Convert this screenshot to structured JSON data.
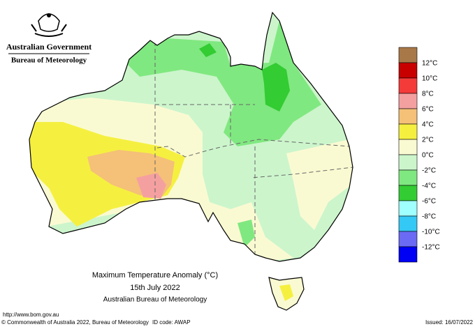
{
  "header": {
    "government": "Australian Government",
    "bureau": "Bureau of Meteorology"
  },
  "legend": {
    "labels": [
      "12°C",
      "10°C",
      "8°C",
      "6°C",
      "4°C",
      "2°C",
      "0°C",
      "-2°C",
      "-4°C",
      "-6°C",
      "-8°C",
      "-10°C",
      "-12°C"
    ],
    "colors": [
      "#a87848",
      "#c80000",
      "#f53a3a",
      "#f5a0a0",
      "#f5c078",
      "#f5f040",
      "#fafad2",
      "#ccf5cc",
      "#80e880",
      "#33cc33",
      "#a0ffff",
      "#33c8f5",
      "#6a6af5",
      "#0000f5"
    ]
  },
  "caption": {
    "title": "Maximum Temperature Anomaly (°C)",
    "date": "15th July 2022",
    "source": "Australian Bureau of Meteorology"
  },
  "footer": {
    "url": "http://www.bom.gov.au",
    "copyright": "© Commonwealth of Australia 2022, Bureau of Meteorology",
    "id_code": "ID code: AWAP",
    "issued": "Issued: 16/07/2022"
  }
}
